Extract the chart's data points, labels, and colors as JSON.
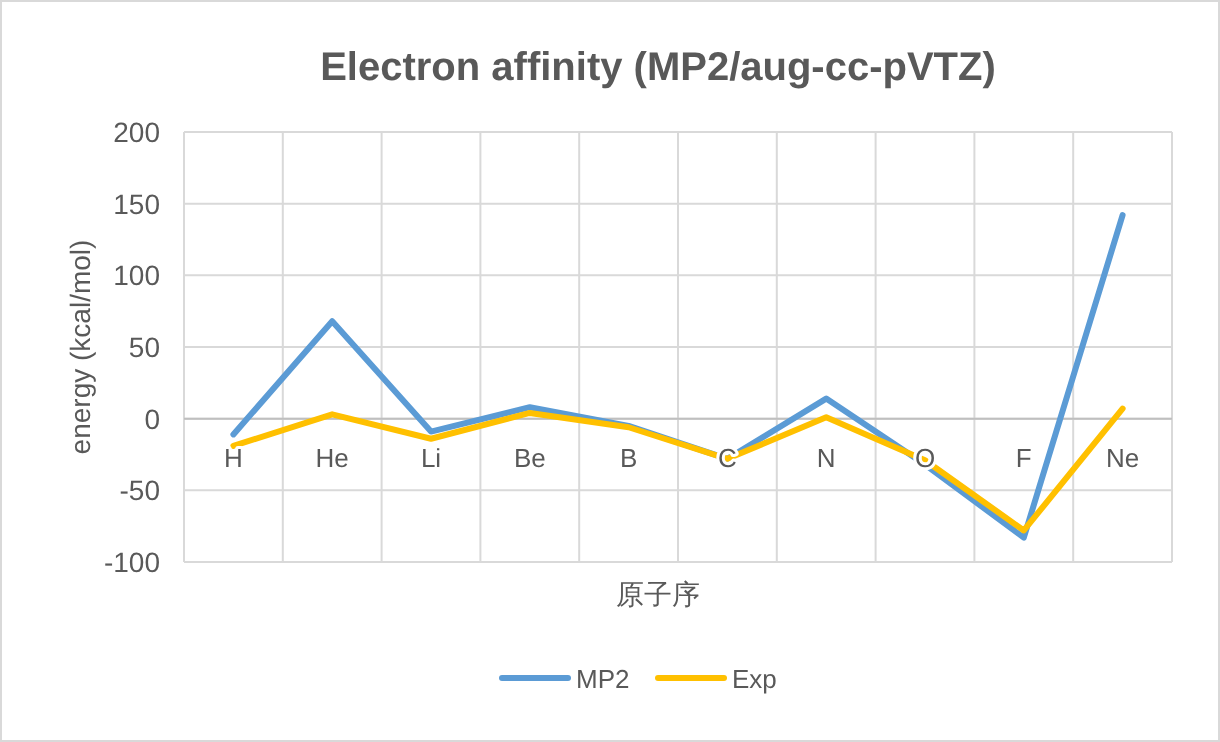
{
  "chart_data": {
    "type": "line",
    "title": "Electron affinity (MP2/aug-cc-pVTZ)",
    "xlabel": "原子序",
    "ylabel": "energy (kcal/mol)",
    "categories": [
      "H",
      "He",
      "Li",
      "Be",
      "B",
      "C",
      "N",
      "O",
      "F",
      "Ne"
    ],
    "series": [
      {
        "name": "MP2",
        "color": "#5b9bd5",
        "values": [
          -11,
          68,
          -9,
          8,
          -5,
          -28,
          14,
          -32,
          -83,
          142
        ]
      },
      {
        "name": "Exp",
        "color": "#ffc000",
        "values": [
          -19,
          3,
          -14,
          4,
          -6,
          -28,
          1,
          -29,
          -78,
          7
        ]
      }
    ],
    "ylim": [
      -100,
      200
    ],
    "yticks": [
      -100,
      -50,
      0,
      50,
      100,
      150,
      200
    ],
    "grid": true,
    "legend": "bottom",
    "marker": "none",
    "line_style": "solid"
  }
}
